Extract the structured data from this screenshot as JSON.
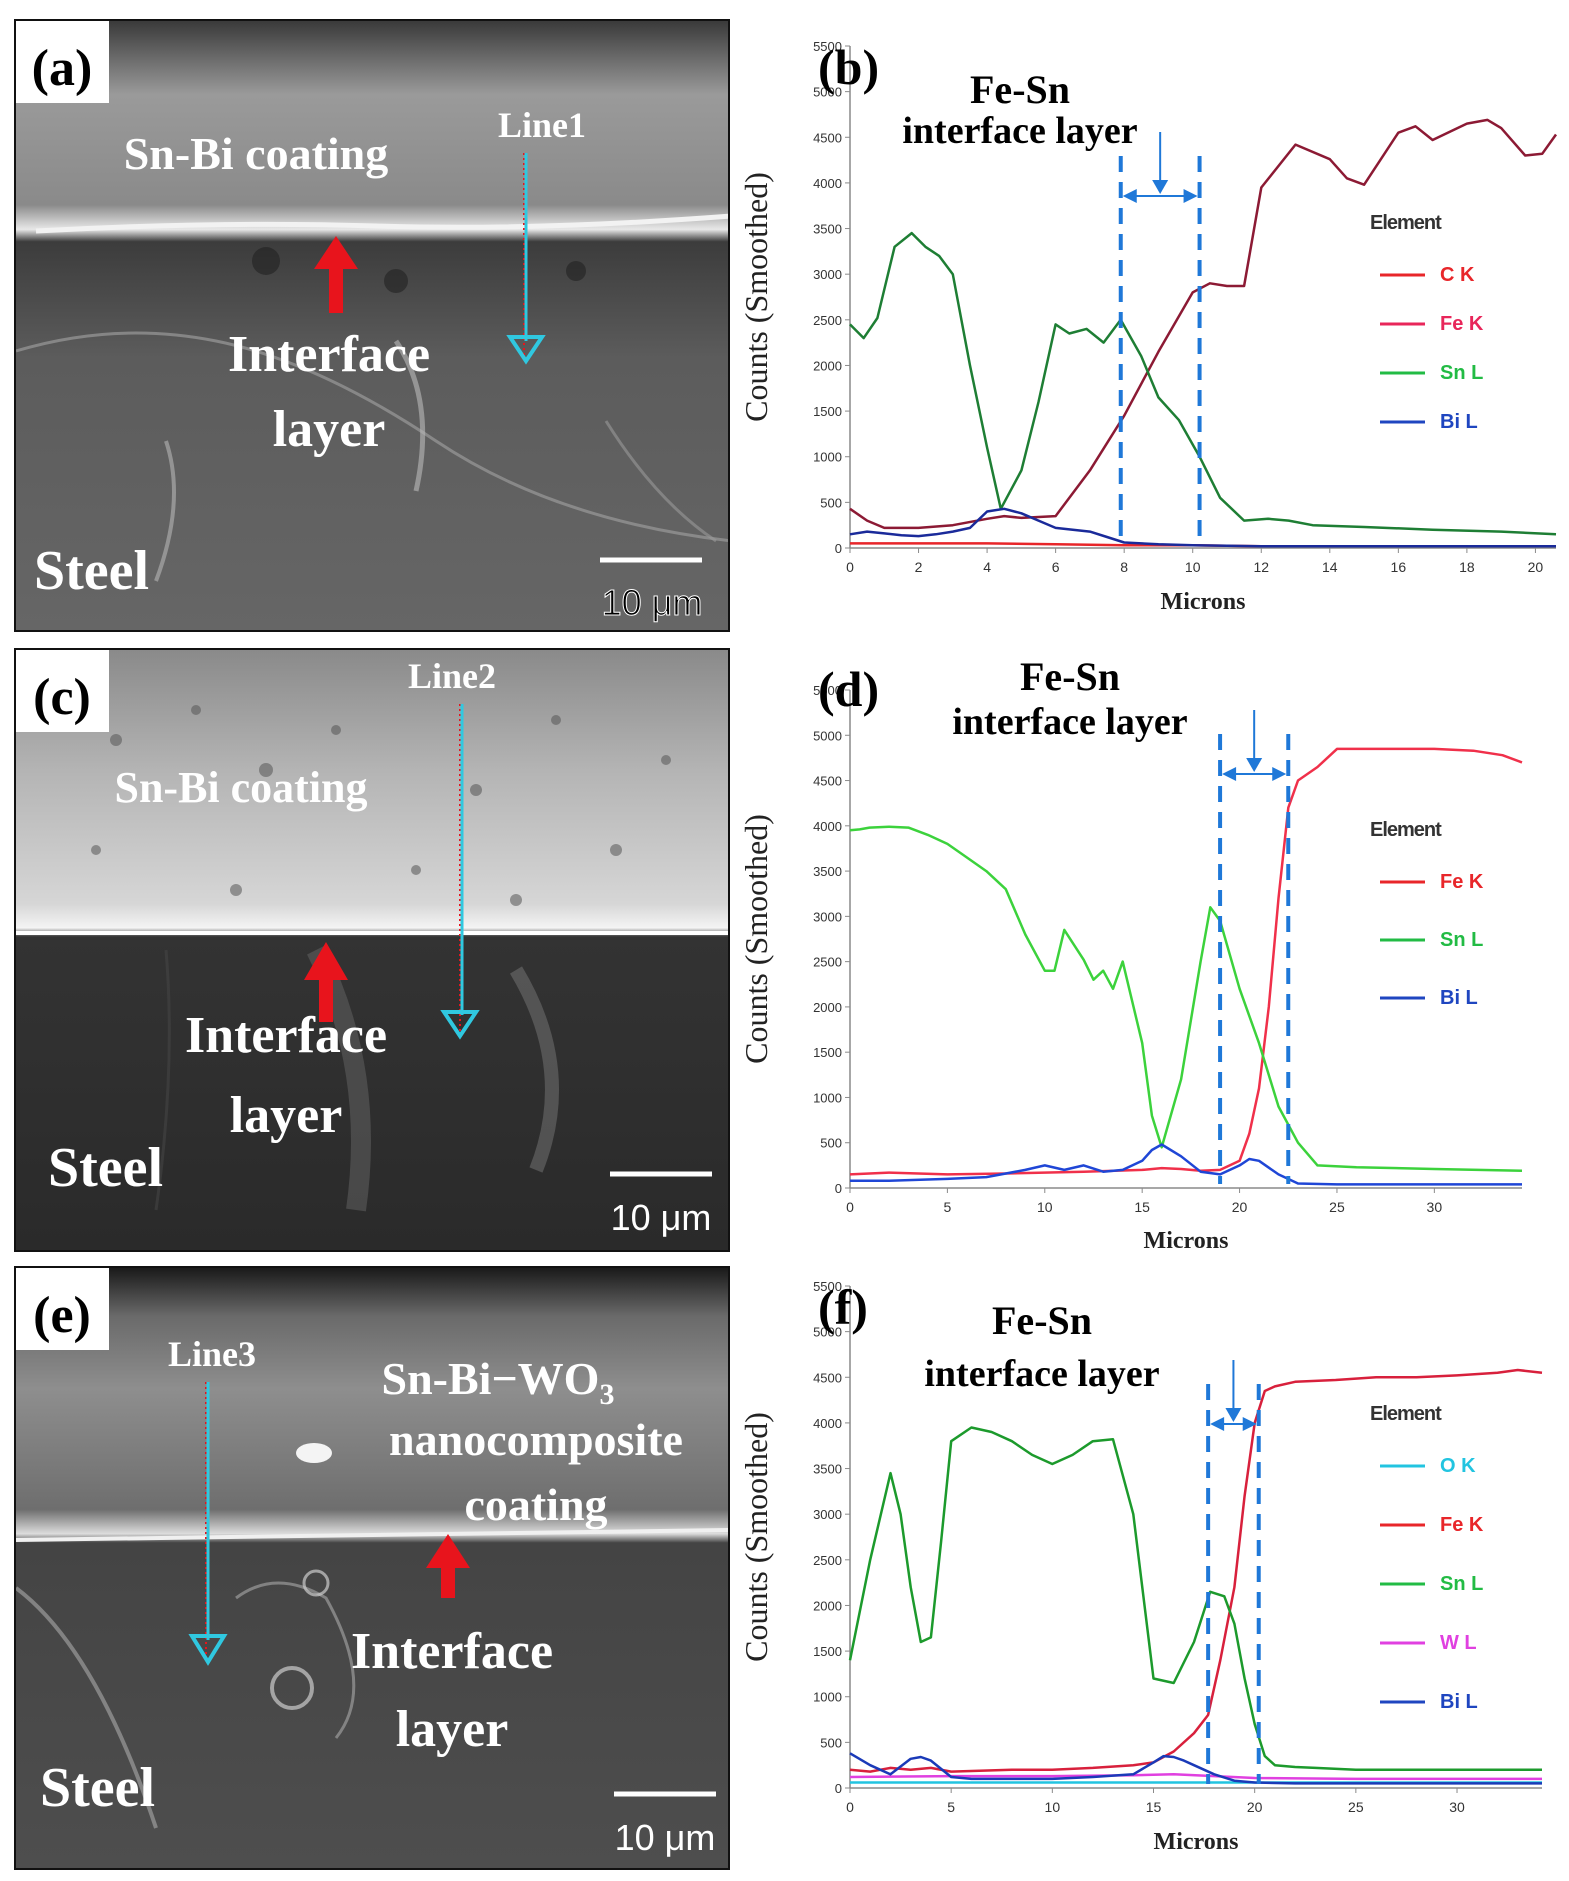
{
  "panels": {
    "a": {
      "label": "(a)",
      "line_label": "Line1",
      "coating_label": "Sn-Bi coating",
      "interface_label_1": "Interface",
      "interface_label_2": "layer",
      "substrate_label": "Steel",
      "scale_bar": "10 μm"
    },
    "c": {
      "label": "(c)",
      "line_label": "Line2",
      "coating_label": "Sn-Bi coating",
      "interface_label_1": "Interface",
      "interface_label_2": "layer",
      "substrate_label": "Steel",
      "scale_bar": "10 μm"
    },
    "e": {
      "label": "(e)",
      "line_label": "Line3",
      "coating_label_1": "Sn-Bi−WO",
      "coating_label_1_sub": "3",
      "coating_label_2": "nanocomposite",
      "coating_label_3": "coating",
      "interface_label_1": "Interface",
      "interface_label_2": "layer",
      "substrate_label": "Steel",
      "scale_bar": "10 μm"
    }
  },
  "colors": {
    "arrow_red": "#e8141c",
    "line_cyan": "#30c8e0",
    "dash_blue": "#1f78d8"
  },
  "chart_data": [
    {
      "id": "b",
      "type": "line",
      "panel_label": "(b)",
      "annotation_1": "Fe-Sn",
      "annotation_2": "interface layer",
      "xlabel": "Microns",
      "ylabel": "Counts (Smoothed)",
      "xlim": [
        0,
        20.6
      ],
      "ylim": [
        0,
        5500
      ],
      "xticks": [
        0,
        2,
        4,
        6,
        8,
        10,
        12,
        14,
        16,
        18,
        20
      ],
      "yticks": [
        0,
        500,
        1000,
        1500,
        2000,
        2500,
        3000,
        3500,
        4000,
        4500,
        5000,
        5500
      ],
      "interface_bounds": [
        7.9,
        10.2
      ],
      "legend_title": "Element",
      "legend_position": "right",
      "series": [
        {
          "name": "C K",
          "color": "#e8262a",
          "legend_color": "#e8262a",
          "x": [
            0,
            2,
            4,
            6,
            8,
            10,
            12,
            14,
            16,
            18,
            20.6
          ],
          "y": [
            50,
            50,
            50,
            40,
            30,
            30,
            20,
            20,
            20,
            20,
            20
          ]
        },
        {
          "name": "Fe K",
          "color": "#8c1a34",
          "legend_color": "#e8265a",
          "x": [
            0,
            0.5,
            1,
            2,
            3,
            4,
            4.5,
            5,
            6,
            7,
            8,
            9,
            10,
            10.5,
            11,
            11.5,
            12,
            13,
            14,
            14.5,
            15,
            16,
            16.5,
            17,
            18,
            18.6,
            19,
            19.7,
            20.2,
            20.6
          ],
          "y": [
            430,
            300,
            220,
            220,
            250,
            320,
            350,
            330,
            350,
            850,
            1450,
            2150,
            2800,
            2900,
            2870,
            2870,
            3950,
            4420,
            4260,
            4050,
            3980,
            4550,
            4620,
            4470,
            4650,
            4690,
            4600,
            4300,
            4320,
            4530
          ]
        },
        {
          "name": "Sn L",
          "color": "#1e7e34",
          "legend_color": "#22bb44",
          "x": [
            0,
            0.4,
            0.8,
            1.3,
            1.8,
            2.2,
            2.6,
            3,
            3.5,
            4,
            4.4,
            5,
            5.5,
            6,
            6.4,
            6.9,
            7.4,
            7.9,
            8.5,
            9,
            9.6,
            10.2,
            10.8,
            11.5,
            12.2,
            12.8,
            13.5,
            15,
            17,
            19,
            20.6
          ],
          "y": [
            2450,
            2300,
            2520,
            3300,
            3450,
            3300,
            3200,
            3000,
            2000,
            1100,
            430,
            850,
            1600,
            2450,
            2350,
            2400,
            2250,
            2500,
            2100,
            1650,
            1400,
            1000,
            550,
            300,
            320,
            300,
            250,
            230,
            200,
            180,
            150
          ]
        },
        {
          "name": "Bi L",
          "color": "#1a2a9a",
          "legend_color": "#1f46c0",
          "x": [
            0,
            0.5,
            1,
            1.5,
            2,
            2.5,
            3,
            3.5,
            4,
            4.5,
            5,
            5.5,
            6,
            7,
            7.5,
            8,
            9,
            10,
            12,
            14,
            16,
            18,
            20.6
          ],
          "y": [
            150,
            180,
            160,
            140,
            130,
            150,
            180,
            220,
            400,
            430,
            380,
            300,
            220,
            180,
            120,
            60,
            40,
            30,
            20,
            20,
            20,
            20,
            20
          ]
        }
      ]
    },
    {
      "id": "d",
      "type": "line",
      "panel_label": "(d)",
      "annotation_1": "Fe-Sn",
      "annotation_2": "interface layer",
      "xlabel": "Microns",
      "ylabel": "Counts (Smoothed)",
      "xlim": [
        0,
        34.5
      ],
      "ylim": [
        0,
        5500
      ],
      "xticks": [
        0,
        5,
        10,
        15,
        20,
        25,
        30
      ],
      "yticks": [
        0,
        500,
        1000,
        1500,
        2000,
        2500,
        3000,
        3500,
        4000,
        4500,
        5000,
        5500
      ],
      "interface_bounds": [
        19,
        22.5
      ],
      "legend_title": "Element",
      "legend_position": "right",
      "series": [
        {
          "name": "Fe K",
          "color": "#f0304a",
          "legend_color": "#e8262a",
          "x": [
            0,
            2,
            5,
            8,
            12,
            15,
            16,
            17,
            18,
            19,
            20,
            20.5,
            21,
            21.5,
            22,
            22.5,
            23,
            24,
            25,
            27,
            30,
            32,
            33.5,
            34.5
          ],
          "y": [
            150,
            170,
            150,
            160,
            180,
            200,
            220,
            210,
            190,
            200,
            300,
            600,
            1100,
            2000,
            3200,
            4200,
            4500,
            4650,
            4850,
            4850,
            4850,
            4830,
            4780,
            4700
          ]
        },
        {
          "name": "Sn L",
          "color": "#3cd23c",
          "legend_color": "#22bb44",
          "x": [
            0,
            0.5,
            1,
            2,
            3,
            4,
            5,
            6,
            7,
            8,
            9,
            10,
            10.5,
            11,
            12,
            12.5,
            13,
            13.5,
            14,
            15,
            15.5,
            16,
            17,
            18,
            18.5,
            19,
            20,
            21,
            22,
            23,
            24,
            26,
            30,
            34.5
          ],
          "y": [
            3950,
            3960,
            3980,
            3990,
            3980,
            3900,
            3800,
            3650,
            3500,
            3300,
            2800,
            2400,
            2400,
            2850,
            2520,
            2300,
            2400,
            2200,
            2500,
            1600,
            800,
            450,
            1200,
            2500,
            3100,
            2950,
            2200,
            1600,
            900,
            500,
            250,
            230,
            210,
            190
          ]
        },
        {
          "name": "Bi L",
          "color": "#1f46d6",
          "legend_color": "#1f46c0",
          "x": [
            0,
            2,
            5,
            7,
            9,
            10,
            11,
            12,
            13,
            14,
            15,
            15.5,
            16,
            17,
            18,
            19,
            20,
            20.5,
            21,
            22,
            23,
            25,
            30,
            34.5
          ],
          "y": [
            80,
            80,
            100,
            120,
            200,
            250,
            200,
            250,
            180,
            200,
            300,
            420,
            480,
            350,
            180,
            150,
            250,
            320,
            300,
            150,
            50,
            40,
            40,
            40
          ]
        }
      ]
    },
    {
      "id": "f",
      "type": "line",
      "panel_label": "(f)",
      "annotation_1": "Fe-Sn",
      "annotation_2": "interface layer",
      "xlabel": "Microns",
      "ylabel": "Counts (Smoothed)",
      "xlim": [
        0,
        34.2
      ],
      "ylim": [
        0,
        5500
      ],
      "xticks": [
        0,
        5,
        10,
        15,
        20,
        25,
        30
      ],
      "yticks": [
        0,
        500,
        1000,
        1500,
        2000,
        2500,
        3000,
        3500,
        4000,
        4500,
        5000,
        5500
      ],
      "interface_bounds": [
        17.7,
        20.2
      ],
      "legend_title": "Element",
      "legend_position": "right",
      "series": [
        {
          "name": "O K",
          "color": "#22c4e0",
          "legend_color": "#22c4e0",
          "x": [
            0,
            5,
            10,
            15,
            20,
            25,
            30,
            34.2
          ],
          "y": [
            60,
            60,
            60,
            60,
            60,
            60,
            60,
            60
          ]
        },
        {
          "name": "Fe K",
          "color": "#d8203c",
          "legend_color": "#e8262a",
          "x": [
            0,
            1,
            2,
            3,
            4,
            5,
            8,
            10,
            12,
            14,
            15,
            16,
            17,
            17.7,
            18.3,
            19,
            19.5,
            20,
            20.5,
            21,
            22,
            24,
            26,
            28,
            30,
            32,
            33,
            34.2
          ],
          "y": [
            200,
            180,
            220,
            200,
            220,
            180,
            200,
            200,
            220,
            250,
            280,
            400,
            600,
            800,
            1400,
            2200,
            3200,
            4000,
            4350,
            4400,
            4450,
            4470,
            4500,
            4500,
            4520,
            4550,
            4580,
            4550
          ]
        },
        {
          "name": "Sn L",
          "color": "#1c9a2c",
          "legend_color": "#22bb44",
          "x": [
            0,
            1,
            2,
            2.5,
            3,
            3.5,
            4,
            4.5,
            5,
            6,
            7,
            8,
            9,
            10,
            11,
            12,
            13,
            14,
            15,
            16,
            17,
            17.8,
            18.5,
            19,
            19.5,
            20,
            20.5,
            21,
            22,
            23,
            25,
            28,
            30,
            32,
            34.2
          ],
          "y": [
            1400,
            2500,
            3450,
            3000,
            2200,
            1600,
            1650,
            2700,
            3800,
            3950,
            3900,
            3800,
            3650,
            3550,
            3650,
            3800,
            3820,
            3000,
            1200,
            1150,
            1600,
            2150,
            2100,
            1800,
            1200,
            700,
            350,
            250,
            230,
            220,
            200,
            200,
            200,
            200,
            200
          ]
        },
        {
          "name": "W L",
          "color": "#e040e0",
          "legend_color": "#e040e0",
          "x": [
            0,
            5,
            10,
            14,
            16,
            18,
            20,
            25,
            30,
            34.2
          ],
          "y": [
            120,
            130,
            130,
            140,
            150,
            130,
            110,
            100,
            100,
            100
          ]
        },
        {
          "name": "Bi L",
          "color": "#1a3ab8",
          "legend_color": "#1f46c0",
          "x": [
            0,
            1,
            2,
            3,
            3.5,
            4,
            5,
            6,
            8,
            10,
            12,
            14,
            15,
            15.5,
            16,
            16.5,
            17,
            18,
            19,
            20,
            22,
            25,
            30,
            34.2
          ],
          "y": [
            380,
            250,
            150,
            320,
            340,
            300,
            120,
            100,
            100,
            100,
            120,
            150,
            280,
            350,
            340,
            300,
            250,
            150,
            80,
            60,
            50,
            50,
            50,
            50
          ]
        }
      ]
    }
  ]
}
